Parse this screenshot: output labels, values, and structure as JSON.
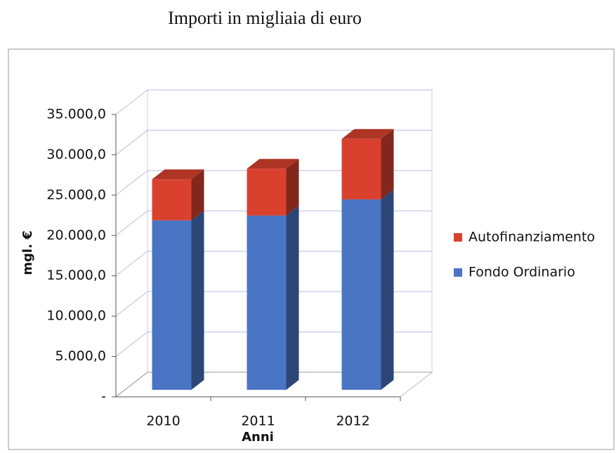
{
  "chart_data": {
    "type": "bar3d_stacked",
    "title": "Importi in migliaia di euro",
    "ylabel": "mgl. €",
    "xlabel": "Anni",
    "categories": [
      "2010",
      "2011",
      "2012"
    ],
    "series": [
      {
        "name": "Fondo Ordinario",
        "color": "#4a74c4",
        "values": [
          21000,
          21600,
          23600
        ]
      },
      {
        "name": "Autofinanziamento",
        "color": "#d9412e",
        "values": [
          5100,
          5800,
          7500
        ]
      }
    ],
    "ylim": [
      0,
      35000
    ],
    "yticks": [
      {
        "value": 0,
        "label": "-"
      },
      {
        "value": 5000,
        "label": "5.000,0"
      },
      {
        "value": 10000,
        "label": "10.000,0"
      },
      {
        "value": 15000,
        "label": "15.000,0"
      },
      {
        "value": 20000,
        "label": "20.000,0"
      },
      {
        "value": 25000,
        "label": "25.000,0"
      },
      {
        "value": 30000,
        "label": "30.000,0"
      },
      {
        "value": 35000,
        "label": "35.000,0"
      }
    ],
    "grid": true,
    "legend": "right"
  }
}
